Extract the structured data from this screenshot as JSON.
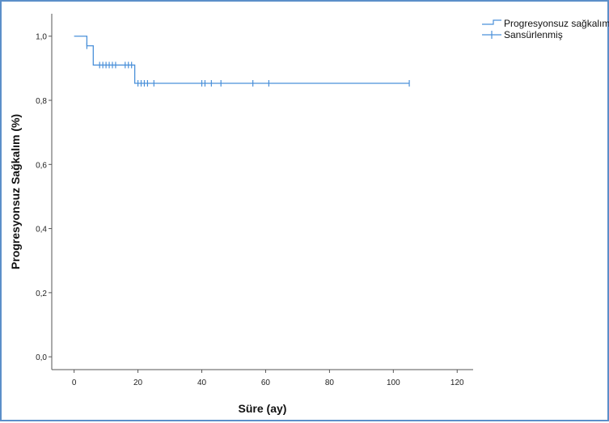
{
  "chart_data": {
    "type": "line",
    "xlabel": "Süre (ay)",
    "ylabel": "Progresyonsuz Sağkalım (%)",
    "xlim": [
      -7,
      125
    ],
    "ylim": [
      -0.04,
      1.07
    ],
    "x_ticks": [
      0,
      20,
      40,
      60,
      80,
      100,
      120
    ],
    "x_tick_labels": [
      "0",
      "20",
      "40",
      "60",
      "80",
      "100",
      "120"
    ],
    "y_ticks": [
      0.0,
      0.2,
      0.4,
      0.6,
      0.8,
      1.0
    ],
    "y_tick_labels": [
      "0,0",
      "0,2",
      "0,4",
      "0,6",
      "0,8",
      "1,0"
    ],
    "grid": false,
    "legend_position": "top-right",
    "series": [
      {
        "name": "Progresyonsuz sağkalım",
        "style": "step",
        "color": "#4a90d9",
        "x": [
          0,
          4,
          6,
          19,
          105
        ],
        "y": [
          1.0,
          0.97,
          0.91,
          0.853,
          0.853
        ]
      },
      {
        "name": "Sansürlenmiş",
        "style": "censor-marks",
        "color": "#4a90d9",
        "x": [
          4,
          8,
          9,
          10,
          11,
          12,
          13,
          16,
          17,
          18,
          20,
          21,
          22,
          23,
          25,
          40,
          41,
          43,
          46,
          56,
          61,
          105
        ],
        "y": [
          0.97,
          0.91,
          0.91,
          0.91,
          0.91,
          0.91,
          0.91,
          0.91,
          0.91,
          0.91,
          0.853,
          0.853,
          0.853,
          0.853,
          0.853,
          0.853,
          0.853,
          0.853,
          0.853,
          0.853,
          0.853,
          0.853
        ]
      }
    ]
  }
}
